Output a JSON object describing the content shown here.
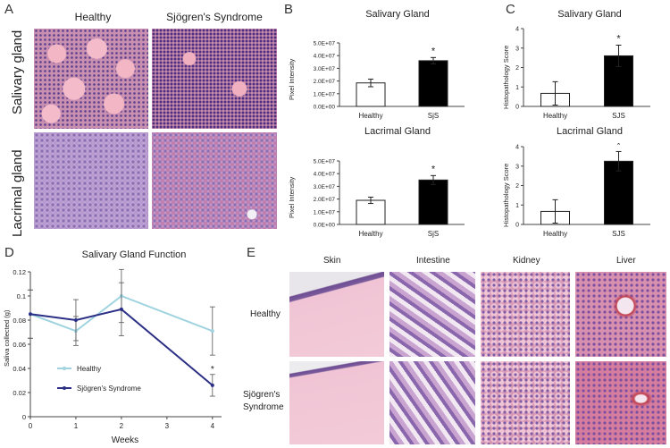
{
  "panel_A": {
    "letter": "A",
    "col_headers": [
      "Healthy",
      "Sjögren's Syndrome"
    ],
    "row_labels": [
      "Salivary gland",
      "Lacrimal gland"
    ]
  },
  "panel_B": {
    "letter": "B"
  },
  "panel_C": {
    "letter": "C"
  },
  "panel_D": {
    "letter": "D"
  },
  "panel_E": {
    "letter": "E",
    "col_headers": [
      "Skin",
      "Intestine",
      "Kidney",
      "Liver"
    ],
    "row_labels": [
      "Healthy",
      "Sjögren's",
      "Syndrome"
    ]
  },
  "chart_data": [
    {
      "id": "B_top",
      "type": "bar",
      "title": "Salivary Gland",
      "ylabel": "Pixel Intensity",
      "categories": [
        "Healthy",
        "SjS"
      ],
      "values": [
        18500000,
        36000000
      ],
      "errors": [
        3000000,
        2500000
      ],
      "colors": [
        "#ffffff",
        "#000000"
      ],
      "ylim": [
        0,
        50000000
      ],
      "yticks": [
        "0.0E+00",
        "1.0E+07",
        "2.0E+07",
        "3.0E+07",
        "4.0E+07",
        "5.0E+07"
      ],
      "annotations": [
        "",
        "*"
      ]
    },
    {
      "id": "B_bottom",
      "type": "bar",
      "title": "Lacrimal Gland",
      "ylabel": "Pixel Intensity",
      "categories": [
        "Healthy",
        "SjS"
      ],
      "values": [
        19000000,
        35000000
      ],
      "errors": [
        2500000,
        3500000
      ],
      "colors": [
        "#ffffff",
        "#000000"
      ],
      "ylim": [
        0,
        50000000
      ],
      "yticks": [
        "0.0E+00",
        "1.0E+07",
        "2.0E+07",
        "3.0E+07",
        "4.0E+07",
        "5.0E+07"
      ],
      "annotations": [
        "",
        "*"
      ]
    },
    {
      "id": "C_top",
      "type": "bar",
      "title": "Salivary Gland",
      "ylabel": "Histopathology Score",
      "categories": [
        "Healthy",
        "SJS"
      ],
      "values": [
        0.67,
        2.6
      ],
      "errors": [
        0.6,
        0.55
      ],
      "colors": [
        "#ffffff",
        "#000000"
      ],
      "ylim": [
        0,
        4
      ],
      "yticks": [
        "0",
        "1",
        "2",
        "3",
        "4"
      ],
      "annotations": [
        "",
        "*"
      ]
    },
    {
      "id": "C_bottom",
      "type": "bar",
      "title": "Lacrimal Gland",
      "ylabel": "Histopathology Score",
      "categories": [
        "Healthy",
        "SJS"
      ],
      "values": [
        0.67,
        3.25
      ],
      "errors": [
        0.6,
        0.5
      ],
      "colors": [
        "#ffffff",
        "#000000"
      ],
      "ylim": [
        0,
        4
      ],
      "yticks": [
        "0",
        "1",
        "2",
        "3",
        "4"
      ],
      "annotations": [
        "",
        "*"
      ]
    },
    {
      "id": "D",
      "type": "line",
      "title": "Salivary Gland Function",
      "xlabel": "Weeks",
      "ylabel": "Saliva collected (g)",
      "xlim": [
        0,
        4.2
      ],
      "ylim": [
        0,
        0.12
      ],
      "xticks": [
        "0",
        "1",
        "2",
        "3",
        "4"
      ],
      "yticks": [
        "0",
        "0.02",
        "0.04",
        "0.06",
        "0.08",
        "0.1",
        "0.12"
      ],
      "legend_position": "bottom-left",
      "series": [
        {
          "name": "Healthy",
          "color": "#9fd3e0",
          "x": [
            0,
            1,
            2,
            4
          ],
          "y": [
            0.085,
            0.071,
            0.1,
            0.071
          ],
          "errors": [
            0.02,
            0.012,
            0.022,
            0.02
          ]
        },
        {
          "name": "Sjögren's Syndrome",
          "color": "#2b2f85",
          "x": [
            0,
            1,
            2,
            4
          ],
          "y": [
            0.085,
            0.08,
            0.089,
            0.026
          ],
          "errors": [
            0.02,
            0.017,
            0.022,
            0.009
          ]
        }
      ],
      "annotation": {
        "x": 4,
        "y": 0.037,
        "text": "*"
      }
    }
  ]
}
